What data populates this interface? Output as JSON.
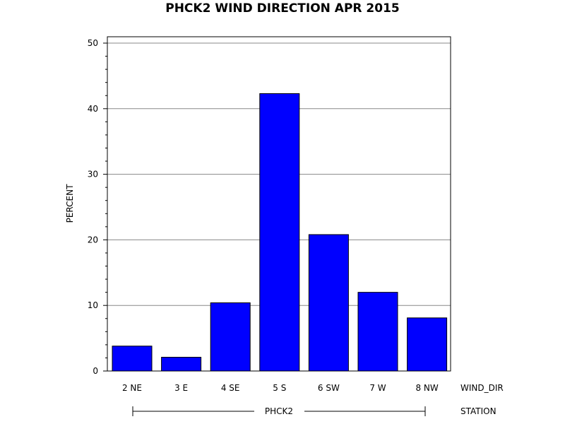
{
  "chart_data": {
    "type": "bar",
    "title": "PHCK2 WIND DIRECTION APR 2015",
    "ylabel": "PERCENT",
    "xlabel": "WIND_DIR",
    "group_label": "STATION",
    "group_value": "PHCK2",
    "categories": [
      "2 NE",
      "3 E",
      "4 SE",
      "5 S",
      "6 SW",
      "7 W",
      "8 NW"
    ],
    "values": [
      3.8,
      2.1,
      10.4,
      42.3,
      20.8,
      12.0,
      8.1
    ],
    "ylim": [
      0,
      50
    ],
    "yticks": [
      "0",
      "10",
      "20",
      "30",
      "40",
      "50"
    ],
    "grid": true,
    "bar_color": "#0000FF"
  }
}
